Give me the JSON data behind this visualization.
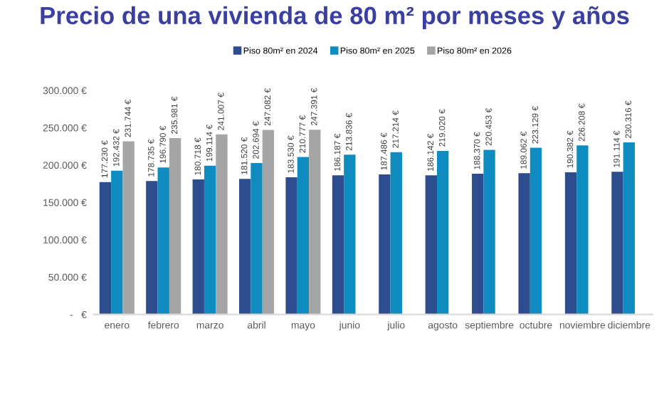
{
  "chart_data": {
    "type": "bar",
    "title": "Precio de una vivienda de 80 m² por meses y años",
    "categories": [
      "enero",
      "febrero",
      "marzo",
      "abril",
      "mayo",
      "junio",
      "julio",
      "agosto",
      "septiembre",
      "octubre",
      "noviembre",
      "diciembre"
    ],
    "series": [
      {
        "name": "Piso 80m² en 2024",
        "color": "#2e4d8f",
        "values": [
          177230,
          178735,
          180718,
          181520,
          183530,
          186187,
          187486,
          186142,
          188370,
          189062,
          190382,
          191114
        ],
        "value_labels": [
          "177.230 €",
          "178.735 €",
          "180.718 €",
          "181.520 €",
          "183.530 €",
          "186.187 €",
          "187.486 €",
          "186.142 €",
          "188.370 €",
          "189.062 €",
          "190.382 €",
          "191.114 €"
        ]
      },
      {
        "name": "Piso 80m² en 2025",
        "color": "#0e8cc0",
        "values": [
          192432,
          196790,
          199114,
          202694,
          210777,
          213836,
          217214,
          219020,
          220453,
          223129,
          226208,
          230316
        ],
        "value_labels": [
          "192.432 €",
          "196.790 €",
          "199.114 €",
          "202.694 €",
          "210.777 €",
          "213.836 €",
          "217.214 €",
          "219.020 €",
          "220.453 €",
          "223.129 €",
          "226.208 €",
          "230.316 €"
        ]
      },
      {
        "name": "Piso 80m² en 2026",
        "color": "#a5a5a5",
        "values": [
          231744,
          235981,
          241007,
          247082,
          247391,
          null,
          null,
          null,
          null,
          null,
          null,
          null
        ],
        "value_labels": [
          "231.744 €",
          "235.981 €",
          "241.007 €",
          "247.082 €",
          "247.391 €",
          null,
          null,
          null,
          null,
          null,
          null,
          null
        ]
      }
    ],
    "ylim": [
      0,
      300000
    ],
    "yticks": [
      {
        "value": 0,
        "label": "-   €"
      },
      {
        "value": 50000,
        "label": "50.000 €"
      },
      {
        "value": 100000,
        "label": "100.000 €"
      },
      {
        "value": 150000,
        "label": "150.000 €"
      },
      {
        "value": 200000,
        "label": "200.000 €"
      },
      {
        "value": 250000,
        "label": "250.000 €"
      },
      {
        "value": 300000,
        "label": "300.000 €"
      }
    ],
    "grid": false,
    "legend": "top"
  }
}
